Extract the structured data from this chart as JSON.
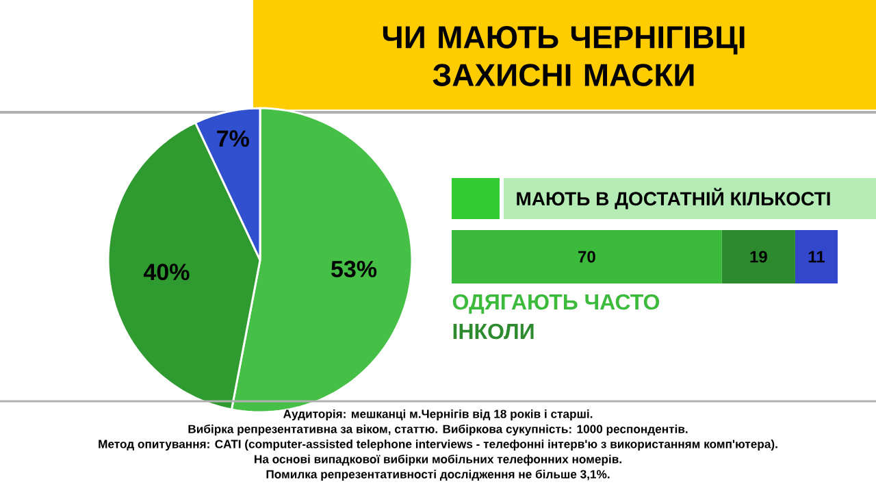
{
  "chart_data": [
    {
      "type": "pie",
      "title": "ЧИ МАЮТЬ ЧЕРНІГІВЦІ ЗАХИСНІ МАСКИ",
      "categories": [
        null,
        null,
        null
      ],
      "values": [
        53,
        40,
        7
      ],
      "colors": [
        "#45bf45",
        "#2f9a2f",
        "#3050d0"
      ],
      "value_labels": [
        "53%",
        "40%",
        "7%"
      ],
      "annotations": [
        "Аудиторія: мешканці м.Чернігів від 18 років і старші.",
        "Вибірка репрезентативна за віком, статтю. Вибіркова сукупність: 1000 респондентів.",
        "Метод опитування: CATI (computer-assisted telephone interviews - телефонні інтерв'ю з використанням комп'ютера).",
        "На основі випадкової вибірки мобільних телефонних номерів.",
        "Помилка репрезентативності дослідження не більше 3,1%."
      ]
    },
    {
      "type": "bar",
      "orientation": "horizontal",
      "stacked": true,
      "title": "МАЮТЬ В ДОСТАТНІЙ КІЛЬКОСТІ",
      "categories": [
        null
      ],
      "tick_labels": false,
      "data_labels": true,
      "legend": "bottom left",
      "series": [
        {
          "name": "ОДЯГАЮТЬ ЧАСТО",
          "color": "#3cba3c",
          "values": [
            70
          ]
        },
        {
          "name": "ІНКОЛИ",
          "color": "#2e8a2e",
          "values": [
            19
          ]
        },
        {
          "color": "#3347cc",
          "values": [
            11
          ]
        }
      ]
    }
  ]
}
